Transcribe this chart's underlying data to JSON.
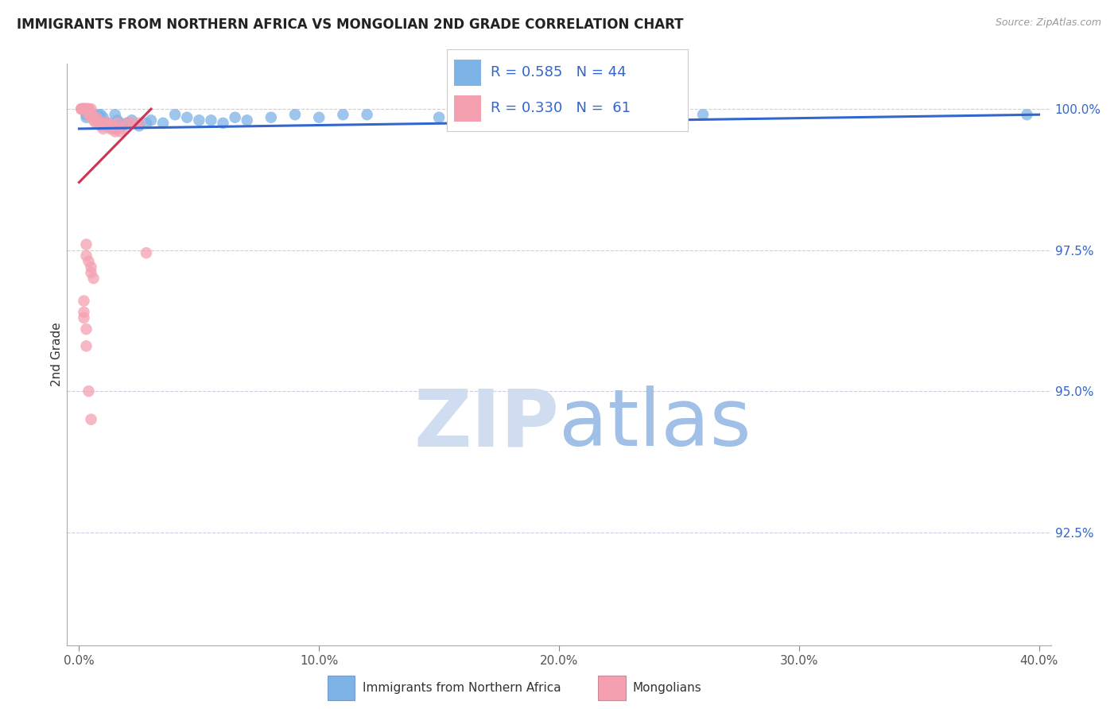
{
  "title": "IMMIGRANTS FROM NORTHERN AFRICA VS MONGOLIAN 2ND GRADE CORRELATION CHART",
  "source": "Source: ZipAtlas.com",
  "xlabel_ticks": [
    "0.0%",
    "10.0%",
    "20.0%",
    "30.0%",
    "40.0%"
  ],
  "xlabel_tick_vals": [
    0.0,
    0.1,
    0.2,
    0.3,
    0.4
  ],
  "ylabel_label": "2nd Grade",
  "ylabel_ticks": [
    "92.5%",
    "95.0%",
    "97.5%",
    "100.0%"
  ],
  "ylabel_tick_vals": [
    0.925,
    0.95,
    0.975,
    1.0
  ],
  "xlim": [
    -0.005,
    0.405
  ],
  "ylim": [
    0.905,
    1.008
  ],
  "blue_R": 0.585,
  "blue_N": 44,
  "pink_R": 0.33,
  "pink_N": 61,
  "blue_color": "#7EB3E8",
  "pink_color": "#F4A0B0",
  "trendline_blue": "#3366CC",
  "trendline_pink": "#CC3355",
  "legend_text_color": "#3366CC",
  "watermark_zip_color": "#D0DCF0",
  "watermark_atlas_color": "#A0C0E8",
  "blue_scatter": [
    [
      0.003,
      0.999
    ],
    [
      0.003,
      0.9985
    ],
    [
      0.004,
      0.999
    ],
    [
      0.005,
      0.999
    ],
    [
      0.006,
      0.999
    ],
    [
      0.007,
      0.9985
    ],
    [
      0.008,
      0.999
    ],
    [
      0.009,
      0.999
    ],
    [
      0.01,
      0.9985
    ],
    [
      0.01,
      0.9975
    ],
    [
      0.011,
      0.9975
    ],
    [
      0.012,
      0.9975
    ],
    [
      0.013,
      0.997
    ],
    [
      0.014,
      0.9965
    ],
    [
      0.015,
      0.999
    ],
    [
      0.016,
      0.998
    ],
    [
      0.017,
      0.9975
    ],
    [
      0.018,
      0.997
    ],
    [
      0.02,
      0.9975
    ],
    [
      0.022,
      0.998
    ],
    [
      0.025,
      0.997
    ],
    [
      0.028,
      0.9975
    ],
    [
      0.03,
      0.998
    ],
    [
      0.035,
      0.9975
    ],
    [
      0.04,
      0.999
    ],
    [
      0.045,
      0.9985
    ],
    [
      0.05,
      0.998
    ],
    [
      0.055,
      0.998
    ],
    [
      0.06,
      0.9975
    ],
    [
      0.065,
      0.9985
    ],
    [
      0.07,
      0.998
    ],
    [
      0.08,
      0.9985
    ],
    [
      0.09,
      0.999
    ],
    [
      0.1,
      0.9985
    ],
    [
      0.11,
      0.999
    ],
    [
      0.12,
      0.999
    ],
    [
      0.15,
      0.9985
    ],
    [
      0.16,
      0.999
    ],
    [
      0.19,
      0.999
    ],
    [
      0.2,
      0.999
    ],
    [
      0.22,
      0.999
    ],
    [
      0.24,
      0.999
    ],
    [
      0.26,
      0.999
    ],
    [
      0.395,
      0.999
    ]
  ],
  "pink_scatter": [
    [
      0.001,
      1.0
    ],
    [
      0.001,
      1.0
    ],
    [
      0.001,
      1.0
    ],
    [
      0.001,
      1.0
    ],
    [
      0.002,
      1.0
    ],
    [
      0.002,
      1.0
    ],
    [
      0.002,
      1.0
    ],
    [
      0.002,
      1.0
    ],
    [
      0.002,
      1.0
    ],
    [
      0.002,
      1.0
    ],
    [
      0.003,
      1.0
    ],
    [
      0.003,
      1.0
    ],
    [
      0.003,
      1.0
    ],
    [
      0.003,
      1.0
    ],
    [
      0.003,
      1.0
    ],
    [
      0.004,
      1.0
    ],
    [
      0.004,
      1.0
    ],
    [
      0.004,
      0.999
    ],
    [
      0.005,
      1.0
    ],
    [
      0.005,
      0.999
    ],
    [
      0.005,
      0.999
    ],
    [
      0.005,
      0.9985
    ],
    [
      0.006,
      0.9985
    ],
    [
      0.006,
      0.998
    ],
    [
      0.007,
      0.9985
    ],
    [
      0.007,
      0.9975
    ],
    [
      0.008,
      0.998
    ],
    [
      0.008,
      0.9975
    ],
    [
      0.009,
      0.9975
    ],
    [
      0.009,
      0.997
    ],
    [
      0.01,
      0.997
    ],
    [
      0.01,
      0.9965
    ],
    [
      0.011,
      0.9975
    ],
    [
      0.011,
      0.997
    ],
    [
      0.012,
      0.9975
    ],
    [
      0.012,
      0.997
    ],
    [
      0.013,
      0.997
    ],
    [
      0.013,
      0.9965
    ],
    [
      0.014,
      0.997
    ],
    [
      0.015,
      0.9965
    ],
    [
      0.015,
      0.996
    ],
    [
      0.016,
      0.9975
    ],
    [
      0.017,
      0.996
    ],
    [
      0.018,
      0.9965
    ],
    [
      0.02,
      0.9975
    ],
    [
      0.022,
      0.9975
    ],
    [
      0.025,
      0.9975
    ],
    [
      0.028,
      0.9745
    ],
    [
      0.003,
      0.976
    ],
    [
      0.003,
      0.974
    ],
    [
      0.004,
      0.973
    ],
    [
      0.005,
      0.972
    ],
    [
      0.005,
      0.971
    ],
    [
      0.006,
      0.97
    ],
    [
      0.002,
      0.966
    ],
    [
      0.002,
      0.964
    ],
    [
      0.002,
      0.963
    ],
    [
      0.003,
      0.961
    ],
    [
      0.003,
      0.958
    ],
    [
      0.004,
      0.95
    ],
    [
      0.005,
      0.945
    ]
  ],
  "blue_trendline_pts": [
    [
      0.0,
      0.9965
    ],
    [
      0.4,
      0.999
    ]
  ],
  "pink_trendline_pts": [
    [
      0.0,
      0.987
    ],
    [
      0.03,
      1.0
    ]
  ]
}
